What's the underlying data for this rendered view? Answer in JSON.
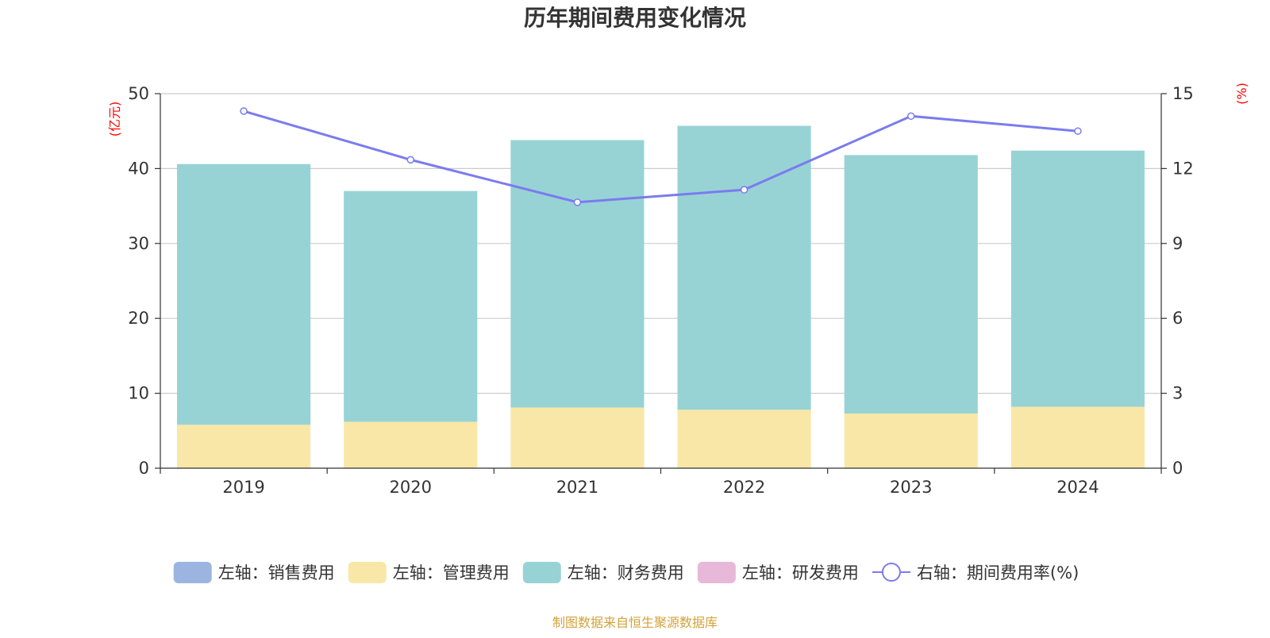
{
  "chart_data": {
    "type": "bar",
    "title": "历年期间费用变化情况",
    "categories": [
      "2019",
      "2020",
      "2021",
      "2022",
      "2023",
      "2024"
    ],
    "stacked": true,
    "y_left": {
      "unit_label": "(亿元)",
      "range": [
        0,
        50
      ],
      "ticks": [
        0,
        10,
        20,
        30,
        40,
        50
      ]
    },
    "y_right": {
      "unit_label": "(%)",
      "range": [
        0,
        15
      ],
      "ticks": [
        0,
        3,
        6,
        9,
        12,
        15
      ]
    },
    "grid": true,
    "series": [
      {
        "name": "左轴：销售费用",
        "axis": "left",
        "type": "bar",
        "color": "#9bb5e0",
        "values": [
          0,
          0,
          0,
          0,
          0,
          0
        ]
      },
      {
        "name": "左轴：管理费用",
        "axis": "left",
        "type": "bar",
        "color": "#f8e7a7",
        "values": [
          5.8,
          6.2,
          8.1,
          7.8,
          7.3,
          8.2
        ]
      },
      {
        "name": "左轴：财务费用",
        "axis": "left",
        "type": "bar",
        "color": "#97d3d4",
        "values": [
          34.8,
          30.8,
          35.7,
          37.9,
          34.5,
          34.2
        ]
      },
      {
        "name": "左轴：研发费用",
        "axis": "left",
        "type": "bar",
        "color": "#e8b8d8",
        "values": [
          0,
          0,
          0,
          0,
          0,
          0
        ]
      },
      {
        "name": "右轴：期间费用率(%)",
        "axis": "right",
        "type": "line",
        "color": "#7b7bef",
        "values": [
          14.3,
          12.35,
          10.65,
          11.15,
          14.1,
          13.5
        ]
      }
    ],
    "legend_position": "bottom"
  },
  "source_note": "制图数据来自恒生聚源数据库",
  "colors": {
    "title": "#333333",
    "axis_unit": "#ff0000",
    "tick_label": "#333333",
    "grid": "#cccccc",
    "axis_line": "#333333",
    "source": "#d4a23a"
  }
}
